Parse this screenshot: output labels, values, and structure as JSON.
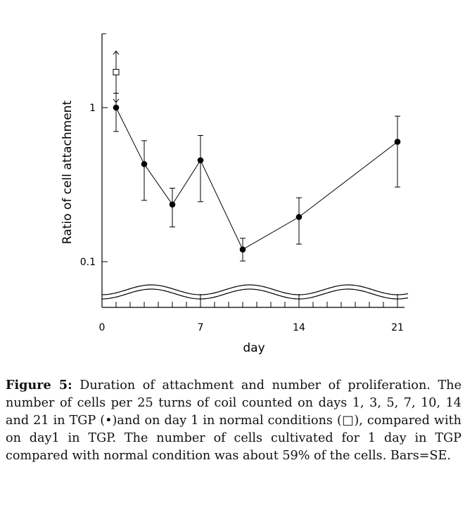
{
  "chart_data": {
    "type": "line",
    "xlabel": "day",
    "ylabel": "Ratio of cell attachment",
    "xlim": [
      0,
      22
    ],
    "ylim": [
      0.1,
      2.5
    ],
    "y_scale": "log",
    "x_ticks": [
      "0",
      "7",
      "14",
      "21"
    ],
    "y_ticks": [
      "1",
      "0.1"
    ],
    "grid": false,
    "series": [
      {
        "marker": "filled-circle",
        "x": [
          1,
          3,
          5,
          7,
          10,
          14,
          21
        ],
        "y": [
          1.0,
          0.43,
          0.235,
          0.455,
          0.12,
          0.195,
          0.6
        ],
        "err_low": [
          0.7,
          0.25,
          0.168,
          0.245,
          0.101,
          0.13,
          0.305
        ],
        "err_high": [
          1.24,
          0.61,
          0.3,
          0.66,
          0.142,
          0.26,
          0.88
        ]
      },
      {
        "marker": "open-square",
        "x": [
          1
        ],
        "y": [
          1.7
        ],
        "err_low": [
          1.08
        ],
        "err_high": [
          2.33
        ]
      }
    ]
  },
  "caption": {
    "label": "Figure 5:",
    "text": " Duration of attachment and number of proliferation. The number of cells per 25 turns of coil counted on days 1, 3, 5, 7, 10, 14 and 21 in TGP (•)and on day 1 in normal conditions (□), compared with on day1 in TGP. The number of cells cultivated for 1 day in TGP compared with normal condition was about 59% of the cells. Bars=SE."
  }
}
